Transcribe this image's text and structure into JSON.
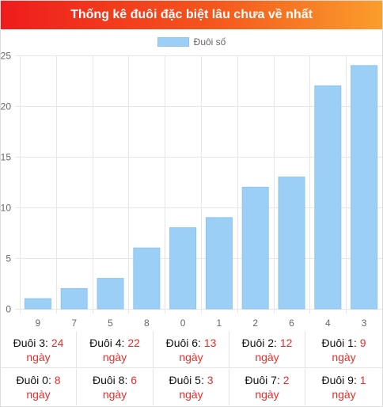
{
  "header": {
    "title": "Thống kê đuôi đặc biệt lâu chưa về nhất"
  },
  "colors": {
    "bar": "#9ccff5",
    "bar_border": "#8dc4ee",
    "value_text": "#e62e2e"
  },
  "chart_data": {
    "type": "bar",
    "categories": [
      "9",
      "7",
      "5",
      "8",
      "0",
      "1",
      "2",
      "6",
      "4",
      "3"
    ],
    "series": [
      {
        "name": "Đuôi số",
        "values": [
          1,
          2,
          3,
          6,
          8,
          9,
          12,
          13,
          22,
          24
        ]
      }
    ],
    "ylim": [
      0,
      25
    ],
    "yticks": [
      0,
      5,
      10,
      15,
      20,
      25
    ],
    "grid": true,
    "legend": "top-center"
  },
  "stats": [
    {
      "label": "Đuôi 3:",
      "value": "24",
      "unit": "ngày"
    },
    {
      "label": "Đuôi 4:",
      "value": "22",
      "unit": "ngày"
    },
    {
      "label": "Đuôi 6:",
      "value": "13",
      "unit": "ngày"
    },
    {
      "label": "Đuôi 2:",
      "value": "12",
      "unit": "ngày"
    },
    {
      "label": "Đuôi 1:",
      "value": "9",
      "unit": "ngày"
    },
    {
      "label": "Đuôi 0:",
      "value": "8",
      "unit": "ngày"
    },
    {
      "label": "Đuôi 8:",
      "value": "6",
      "unit": "ngày"
    },
    {
      "label": "Đuôi 5:",
      "value": "3",
      "unit": "ngày"
    },
    {
      "label": "Đuôi 7:",
      "value": "2",
      "unit": "ngày"
    },
    {
      "label": "Đuôi 9:",
      "value": "1",
      "unit": "ngày"
    }
  ]
}
